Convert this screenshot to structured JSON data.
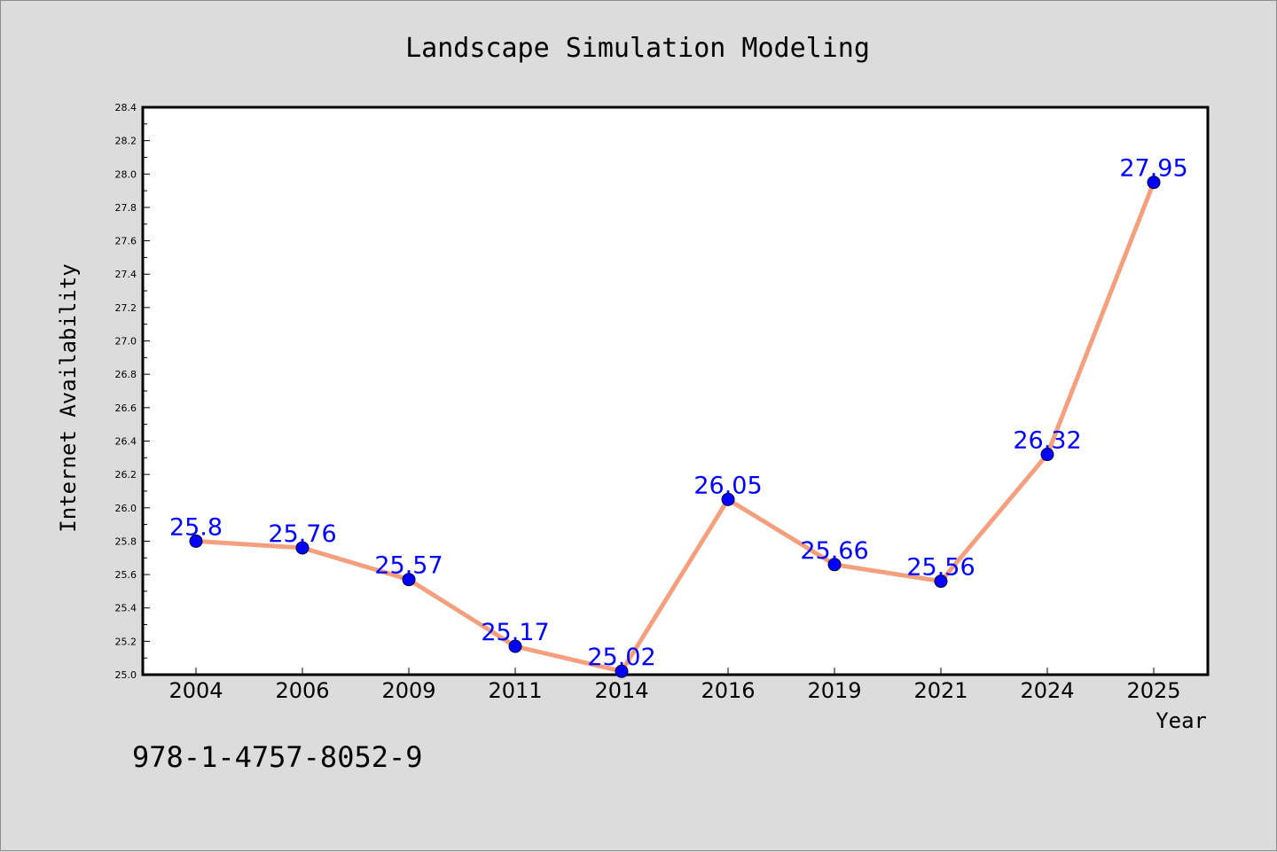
{
  "chart_data": {
    "type": "line",
    "title": "Landscape Simulation Modeling",
    "xlabel": "Year",
    "ylabel": "Internet Availability",
    "categories": [
      "2004",
      "2006",
      "2009",
      "2011",
      "2014",
      "2016",
      "2019",
      "2021",
      "2024",
      "2025"
    ],
    "series": [
      {
        "values": [
          25.8,
          25.76,
          25.57,
          25.17,
          25.02,
          26.05,
          25.66,
          25.56,
          26.32,
          27.95
        ],
        "data_labels": [
          "25.8",
          "25.76",
          "25.57",
          "25.17",
          "25.02",
          "26.05",
          "25.66",
          "25.56",
          "26.32",
          "27.95"
        ]
      }
    ],
    "ylim": [
      25.0,
      28.4
    ],
    "yticks": [
      "25.0",
      "25.2",
      "25.4",
      "25.6",
      "25.8",
      "26.0",
      "26.2",
      "26.4",
      "26.6",
      "26.8",
      "27.0",
      "27.2",
      "27.4",
      "27.6",
      "27.8",
      "28.0",
      "28.2",
      "28.4"
    ],
    "grid": false,
    "legend": "none",
    "line_color": "#f4a07f",
    "marker_color": "#0000ff",
    "label_color": "#0000ff"
  },
  "footer_code": "978-1-4757-8052-9"
}
